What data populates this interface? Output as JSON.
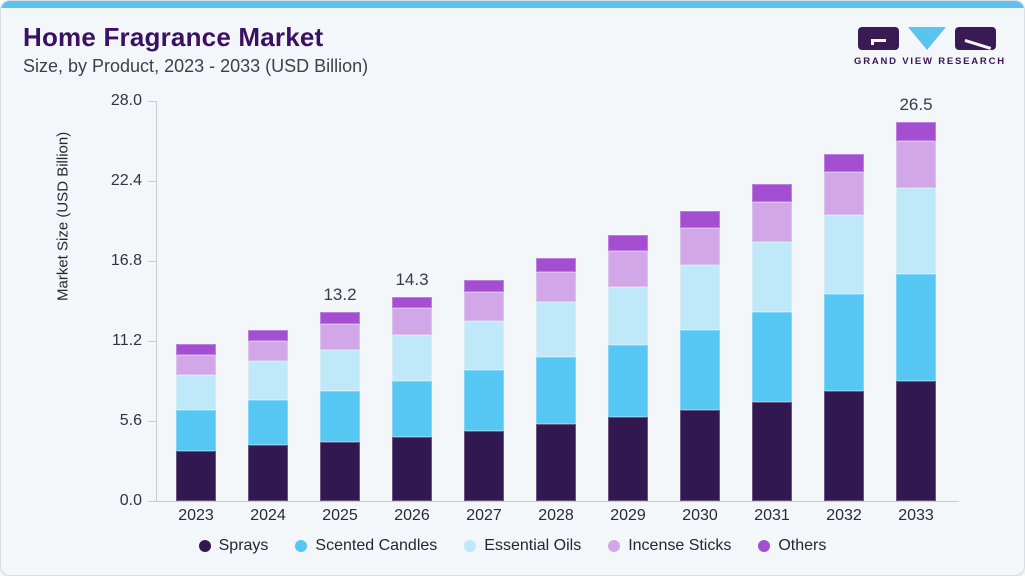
{
  "header": {
    "title": "Home Fragrance Market",
    "subtitle": "Size, by Product, 2023 - 2033 (USD Billion)",
    "logo_text": "GRAND VIEW RESEARCH",
    "accent_color": "#5bc3ee",
    "title_color": "#3a1163"
  },
  "chart_data": {
    "type": "bar",
    "stacked": true,
    "title": "Home Fragrance Market Size, by Product, 2023 - 2033 (USD Billion)",
    "xlabel": "",
    "ylabel": "Market Size (USD Billion)",
    "ylim": [
      0,
      28
    ],
    "yticks": [
      "0.0",
      "5.6",
      "11.2",
      "16.8",
      "22.4",
      "28.0"
    ],
    "grid": false,
    "legend_position": "bottom",
    "categories": [
      "2023",
      "2024",
      "2025",
      "2026",
      "2027",
      "2028",
      "2029",
      "2030",
      "2031",
      "2032",
      "2033"
    ],
    "series": [
      {
        "name": "Sprays",
        "color": "#321850",
        "values": [
          3.5,
          3.9,
          4.1,
          4.5,
          4.9,
          5.4,
          5.9,
          6.4,
          6.9,
          7.7,
          8.4
        ]
      },
      {
        "name": "Scented Candles",
        "color": "#56c7f2",
        "values": [
          2.9,
          3.2,
          3.6,
          3.9,
          4.3,
          4.7,
          5.0,
          5.6,
          6.3,
          6.8,
          7.5
        ]
      },
      {
        "name": "Essential Oils",
        "color": "#bfe8f9",
        "values": [
          2.4,
          2.7,
          2.9,
          3.2,
          3.4,
          3.8,
          4.1,
          4.5,
          4.9,
          5.5,
          6.0
        ]
      },
      {
        "name": "Incense Sticks",
        "color": "#d2a7e8",
        "values": [
          1.4,
          1.4,
          1.8,
          1.9,
          2.0,
          2.1,
          2.5,
          2.6,
          2.8,
          3.0,
          3.3
        ]
      },
      {
        "name": "Others",
        "color": "#a44fd2",
        "values": [
          0.8,
          0.8,
          0.8,
          0.8,
          0.9,
          1.0,
          1.1,
          1.2,
          1.3,
          1.3,
          1.3
        ]
      }
    ],
    "bar_value_labels": {
      "2025": "13.2",
      "2026": "14.3",
      "2033": "26.5"
    },
    "axis_color": "#c5cbd2",
    "background_color": "#f3f7fa"
  }
}
